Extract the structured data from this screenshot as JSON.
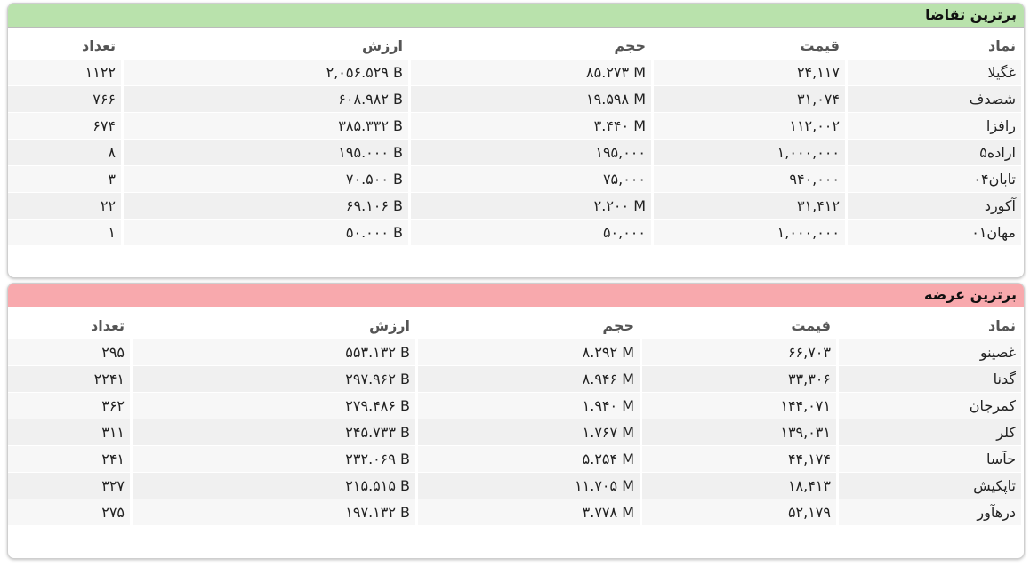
{
  "panels": [
    {
      "title": "برترین تقاضا",
      "headers": [
        "نماد",
        "قیمت",
        "حجم",
        "ارزش",
        "تعداد"
      ],
      "rows": [
        [
          "غگیلا",
          "۲۴,۱۱۷",
          "۸۵.۲۷۳ M",
          "۲,۰۵۶.۵۲۹ B",
          "۱۱۲۲"
        ],
        [
          "شصدف",
          "۳۱,۰۷۴",
          "۱۹.۵۹۸ M",
          "۶۰۸.۹۸۲ B",
          "۷۶۶"
        ],
        [
          "رافزا",
          "۱۱۲,۰۰۲",
          "۳.۴۴۰ M",
          "۳۸۵.۳۳۲ B",
          "۶۷۴"
        ],
        [
          "اراده۵",
          "۱,۰۰۰,۰۰۰",
          "۱۹۵,۰۰۰",
          "۱۹۵.۰۰۰ B",
          "۸"
        ],
        [
          "تابان۰۴",
          "۹۴۰,۰۰۰",
          "۷۵,۰۰۰",
          "۷۰.۵۰۰ B",
          "۳"
        ],
        [
          "آکورد",
          "۳۱,۴۱۲",
          "۲.۲۰۰ M",
          "۶۹.۱۰۶ B",
          "۲۲"
        ],
        [
          "مهان۰۱",
          "۱,۰۰۰,۰۰۰",
          "۵۰,۰۰۰",
          "۵۰.۰۰۰ B",
          "۱"
        ]
      ]
    },
    {
      "title": "برترین عرضه",
      "headers": [
        "نماد",
        "قیمت",
        "حجم",
        "ارزش",
        "تعداد"
      ],
      "rows": [
        [
          "غصینو",
          "۶۶,۷۰۳",
          "۸.۲۹۲ M",
          "۵۵۳.۱۳۲ B",
          "۲۹۵"
        ],
        [
          "گدنا",
          "۳۳,۳۰۶",
          "۸.۹۴۶ M",
          "۲۹۷.۹۶۲ B",
          "۲۲۴۱"
        ],
        [
          "کمرجان",
          "۱۴۴,۰۷۱",
          "۱.۹۴۰ M",
          "۲۷۹.۴۸۶ B",
          "۳۶۲"
        ],
        [
          "کلر",
          "۱۳۹,۰۳۱",
          "۱.۷۶۷ M",
          "۲۴۵.۷۳۳ B",
          "۳۱۱"
        ],
        [
          "حآسا",
          "۴۴,۱۷۴",
          "۵.۲۵۴ M",
          "۲۳۲.۰۶۹ B",
          "۲۴۱"
        ],
        [
          "تاپکیش",
          "۱۸,۴۱۳",
          "۱۱.۷۰۵ M",
          "۲۱۵.۵۱۵ B",
          "۳۲۷"
        ],
        [
          "درهآور",
          "۵۲,۱۷۹",
          "۳.۷۷۸ M",
          "۱۹۷.۱۳۲ B",
          "۲۷۵"
        ]
      ]
    }
  ]
}
